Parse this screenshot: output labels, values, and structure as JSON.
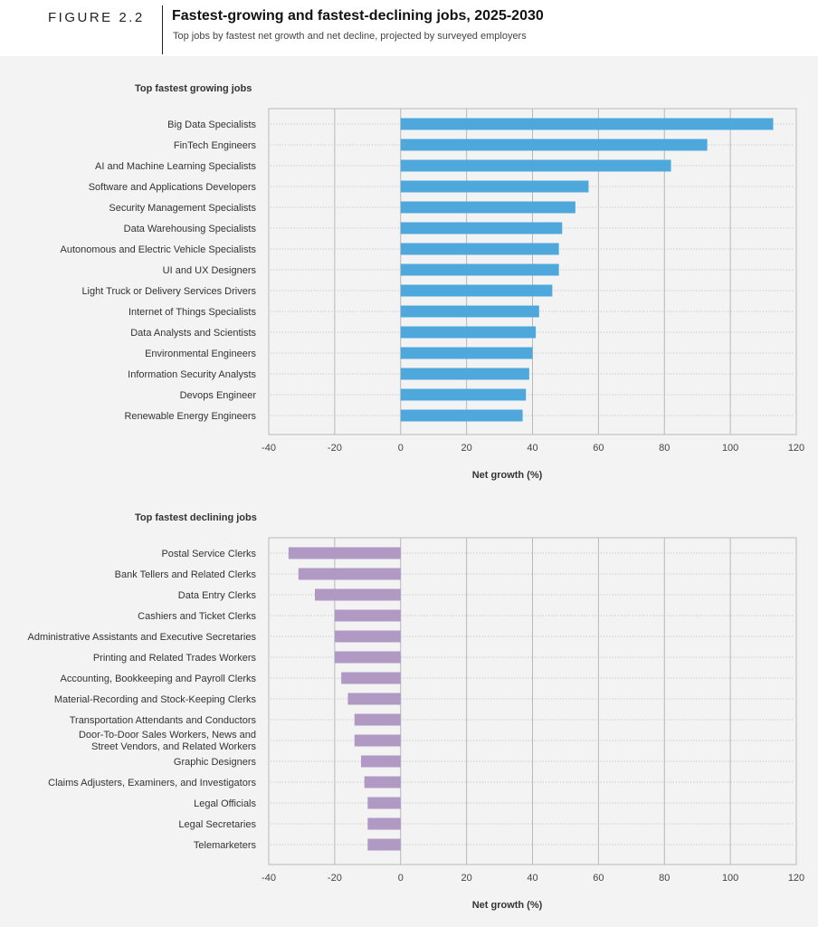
{
  "figure": {
    "label": "FIGURE 2.2",
    "title": "Fastest-growing and fastest-declining jobs, 2025-2030",
    "subtitle": "Top jobs by fastest net growth and net decline, projected by surveyed employers"
  },
  "colors": {
    "growing": "#4fa8dc",
    "declining": "#b09ac4",
    "panel_background": "#f3f3f3",
    "gridline": "#b8b8b8"
  },
  "chart_data": [
    {
      "type": "bar",
      "orientation": "horizontal",
      "title": "Top fastest growing jobs",
      "xlabel": "Net growth (%)",
      "ylabel": "",
      "xlim": [
        -40,
        120
      ],
      "xticks": [
        -40,
        -20,
        0,
        20,
        40,
        60,
        80,
        100,
        120
      ],
      "grid": true,
      "categories": [
        "Big Data Specialists",
        "FinTech Engineers",
        "AI and Machine Learning Specialists",
        "Software and Applications Developers",
        "Security Management Specialists",
        "Data Warehousing Specialists",
        "Autonomous and Electric Vehicle Specialists",
        "UI and UX Designers",
        "Light Truck or Delivery Services Drivers",
        "Internet of Things Specialists",
        "Data Analysts and Scientists",
        "Environmental Engineers",
        "Information Security Analysts",
        "Devops Engineer",
        "Renewable Energy Engineers"
      ],
      "values": [
        113,
        93,
        82,
        57,
        53,
        49,
        48,
        48,
        46,
        42,
        41,
        40,
        39,
        38,
        37
      ]
    },
    {
      "type": "bar",
      "orientation": "horizontal",
      "title": "Top fastest declining jobs",
      "xlabel": "Net growth (%)",
      "ylabel": "",
      "xlim": [
        -40,
        120
      ],
      "xticks": [
        -40,
        -20,
        0,
        20,
        40,
        60,
        80,
        100,
        120
      ],
      "grid": true,
      "categories": [
        "Postal Service Clerks",
        "Bank Tellers and Related Clerks",
        "Data Entry Clerks",
        "Cashiers and Ticket Clerks",
        "Administrative Assistants and Executive Secretaries",
        "Printing and Related Trades Workers",
        "Accounting, Bookkeeping and Payroll Clerks",
        "Material-Recording and Stock-Keeping Clerks",
        "Transportation Attendants and Conductors",
        "Door-To-Door Sales Workers, News and Street Vendors, and Related Workers",
        "Graphic Designers",
        "Claims Adjusters, Examiners, and Investigators",
        "Legal Officials",
        "Legal Secretaries",
        "Telemarketers"
      ],
      "category_lines": {
        "9": [
          "Door-To-Door Sales Workers, News and",
          "Street Vendors, and Related Workers"
        ]
      },
      "values": [
        -34,
        -31,
        -26,
        -20,
        -20,
        -20,
        -18,
        -16,
        -14,
        -14,
        -12,
        -11,
        -10,
        -10,
        -10
      ]
    }
  ]
}
